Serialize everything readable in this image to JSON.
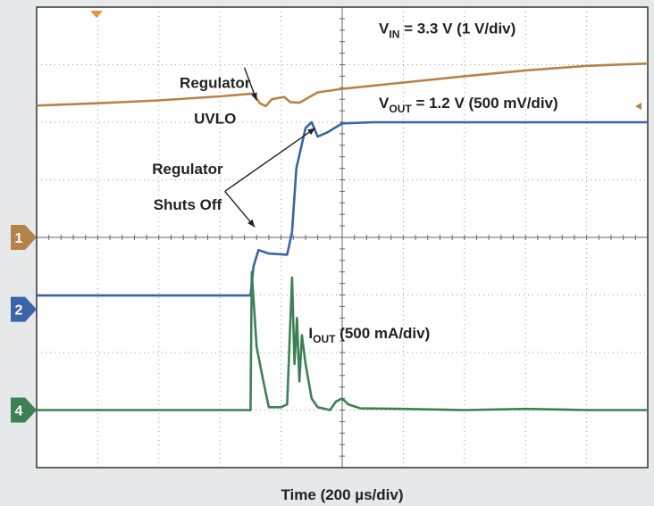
{
  "chart_data": {
    "type": "line",
    "title": "",
    "xlabel": "Time (200 µs/div)",
    "ylabel": "",
    "grid": true,
    "x_divisions": 10,
    "y_divisions": 8,
    "xlim": [
      0,
      10
    ],
    "ylim": [
      0,
      8
    ],
    "series": [
      {
        "name": "VIN = 3.3 V (1 V/div)",
        "channel": "1",
        "color": "#b5834a",
        "x": [
          0,
          1,
          2,
          3,
          3.55,
          3.65,
          3.75,
          3.85,
          4.05,
          4.15,
          4.3,
          4.45,
          4.6,
          5,
          6,
          7,
          8,
          9,
          10
        ],
        "y": [
          6.29,
          6.33,
          6.38,
          6.45,
          6.5,
          6.33,
          6.28,
          6.4,
          6.44,
          6.35,
          6.34,
          6.43,
          6.52,
          6.58,
          6.69,
          6.8,
          6.9,
          6.98,
          7.02
        ]
      },
      {
        "name": "VOUT = 1.2 V (500 mV/div)",
        "channel": "2",
        "color": "#3a63a8",
        "x": [
          0,
          3.5,
          3.55,
          3.63,
          3.8,
          4.1,
          4.18,
          4.25,
          4.4,
          4.5,
          4.6,
          4.75,
          5.0,
          5.5,
          6,
          7,
          8,
          9,
          10
        ],
        "y": [
          2.99,
          2.99,
          3.5,
          3.78,
          3.72,
          3.7,
          4.1,
          5.2,
          5.9,
          6.0,
          5.75,
          5.82,
          5.98,
          6.0,
          6.0,
          6.0,
          6.0,
          6.0,
          6.0
        ]
      },
      {
        "name": "IOUT (500 mA/div)",
        "channel": "4",
        "color": "#3e8055",
        "x": [
          0,
          3.5,
          3.52,
          3.6,
          3.7,
          3.8,
          3.9,
          4.0,
          4.1,
          4.18,
          4.22,
          4.26,
          4.3,
          4.34,
          4.4,
          4.5,
          4.6,
          4.8,
          4.9,
          5.0,
          5.1,
          5.3,
          6,
          7,
          8,
          9,
          10
        ],
        "y": [
          1.0,
          1.0,
          3.4,
          2.1,
          1.55,
          1.05,
          1.05,
          1.05,
          1.1,
          3.3,
          1.8,
          2.6,
          1.5,
          2.3,
          1.8,
          1.2,
          1.05,
          1.0,
          1.15,
          1.2,
          1.1,
          1.03,
          1.02,
          1.0,
          1.02,
          1.0,
          1.0
        ]
      }
    ],
    "channel_markers": [
      {
        "label": "1",
        "level": 4.0,
        "color": "#b5834a"
      },
      {
        "label": "2",
        "level": 2.75,
        "color": "#3a63a8"
      },
      {
        "label": "4",
        "level": 1.0,
        "color": "#3e8055"
      }
    ],
    "annotations": [
      {
        "text": "Regulator",
        "x": 2.92,
        "y": 6.6
      },
      {
        "text": "UVLO",
        "x": 2.92,
        "y": 5.98
      },
      {
        "text": "Regulator",
        "x": 2.47,
        "y": 5.1
      },
      {
        "text": "Shuts Off",
        "x": 2.47,
        "y": 4.48
      }
    ],
    "arrows": [
      {
        "from": [
          3.4,
          6.95
        ],
        "to": [
          3.6,
          6.38
        ]
      },
      {
        "from": [
          3.08,
          4.8
        ],
        "to": [
          3.57,
          4.18
        ]
      },
      {
        "from": [
          3.08,
          4.8
        ],
        "to": [
          4.56,
          5.9
        ]
      }
    ],
    "series_labels": [
      {
        "main": "V",
        "sub": "IN",
        "rest": " = 3.3 V (1 V/div)",
        "x": 5.6,
        "y": 7.54
      },
      {
        "main": "V",
        "sub": "OUT",
        "rest": " = 1.2 V (500 mV/div)",
        "x": 5.6,
        "y": 6.25
      },
      {
        "main": "I",
        "sub": "OUT",
        "rest": " (500 mA/div)",
        "x": 4.45,
        "y": 2.25
      }
    ]
  }
}
